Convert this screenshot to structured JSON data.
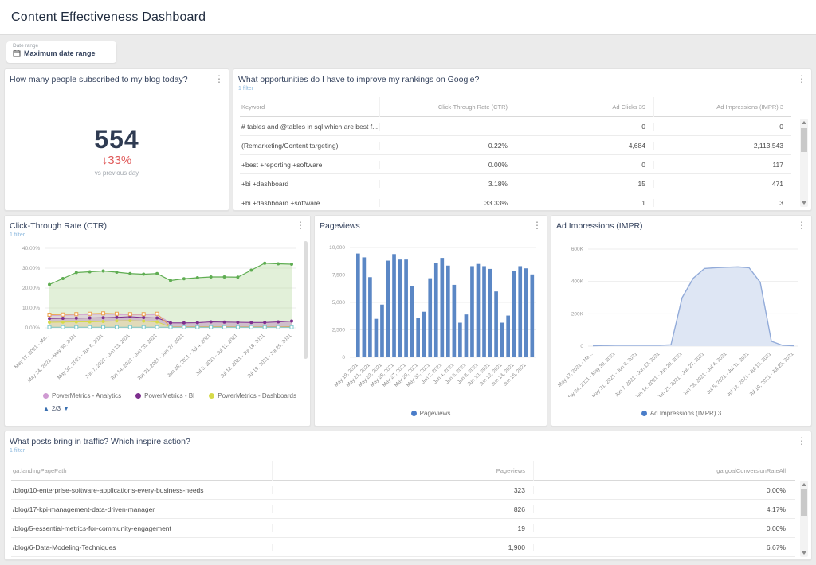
{
  "page": {
    "title": "Content Effectiveness Dashboard"
  },
  "date_filter": {
    "label": "Date range",
    "value": "Maximum date range"
  },
  "kebab_glyph": "⋮",
  "subscribers": {
    "title": "How many people subscribed to my blog today?",
    "value": "554",
    "delta_arrow": "↓",
    "delta": "33%",
    "compare": "vs previous day"
  },
  "rankings": {
    "title": "What opportunities do I have to improve my rankings on Google?",
    "filter": "1 filter",
    "columns": [
      "Keyword",
      "Click-Through Rate (CTR)",
      "Ad Clicks 39",
      "Ad Impressions (IMPR) 3"
    ],
    "rows": [
      [
        "# tables and @tables in sql which are best f...",
        "",
        "0",
        "0"
      ],
      [
        "(Remarketing/Content targeting)",
        "0.22%",
        "4,684",
        "2,113,543"
      ],
      [
        "+best +reporting +software",
        "0.00%",
        "0",
        "117"
      ],
      [
        "+bi +dashboard",
        "3.18%",
        "15",
        "471"
      ],
      [
        "+bi +dashboard +software",
        "33.33%",
        "1",
        "3"
      ]
    ]
  },
  "ctr_panel": {
    "title": "Click-Through Rate (CTR)",
    "filter": "1 filter",
    "pager": "2/3",
    "pager_up": "▲",
    "pager_down": "▼"
  },
  "pageviews_panel": {
    "title": "Pageviews"
  },
  "impressions_panel": {
    "title": "Ad Impressions (IMPR)"
  },
  "posts": {
    "title": "What posts bring in traffic? Which inspire action?",
    "filter": "1 filter",
    "columns": [
      "ga:landingPagePath",
      "Pageviews",
      "ga:goalConversionRateAll"
    ],
    "rows": [
      [
        "/blog/10-enterprise-software-applications-every-business-needs",
        "323",
        "0.00%"
      ],
      [
        "/blog/17-kpi-management-data-driven-manager",
        "826",
        "4.17%"
      ],
      [
        "/blog/5-essential-metrics-for-community-engagement",
        "19",
        "0.00%"
      ],
      [
        "/blog/6-Data-Modeling-Techniques",
        "1,900",
        "6.67%"
      ]
    ]
  },
  "colors": {
    "accent_blue": "#8db9de",
    "negative_red": "#e05b5b",
    "number_navy": "#2f3b52",
    "bar_blue": "#5b87c5",
    "pager_blue": "#3a6fb0"
  },
  "chart_data": [
    {
      "id": "ctr",
      "type": "line",
      "title": "Click-Through Rate (CTR)",
      "ylim": [
        0,
        40
      ],
      "yticks": [
        "40.00%",
        "30.00%",
        "20.00%",
        "10.00%",
        "0.00%"
      ],
      "ytick_values": [
        40,
        30,
        20,
        10,
        0
      ],
      "x_labels": [
        "May 17, 2021 - Ma...",
        "May 24, 2021 - May 30, 2021",
        "May 31, 2021 - Jun 6, 2021",
        "Jun 7, 2021 - Jun 13, 2021",
        "Jun 14, 2021 - Jun 20, 2021",
        "Jun 21, 2021 - Jun 27, 2021",
        "Jun 28, 2021 - Jul 4, 2021",
        "Jul 5, 2021 - Jul 11, 2021",
        "Jul 12, 2021 - Jul 18, 2021",
        "Jul 19, 2021 - Jul 25, 2021"
      ],
      "label_every": 2,
      "series": [
        {
          "name": "series-green",
          "color": "#5fad52",
          "fill": "rgba(151,200,118,0.28)",
          "marker": "circle",
          "width": 1.2,
          "values": [
            21.8,
            24.8,
            27.8,
            28.2,
            28.6,
            28.0,
            27.3,
            27.0,
            27.3,
            23.8,
            24.7,
            25.2,
            25.6,
            25.6,
            25.5,
            29.0,
            32.5,
            32.2,
            32.0
          ]
        },
        {
          "name": "PowerMetrics - Analytics",
          "color": "#cf9ad2",
          "fill": "rgba(207,154,210,0.30)",
          "marker": "none",
          "width": 0.8,
          "values": [
            6.2,
            6.3,
            6.5,
            6.7,
            6.9,
            6.7,
            6.5,
            6.5,
            6.7,
            2.4,
            2.4,
            2.5,
            2.9,
            2.8,
            2.7,
            2.6,
            2.6,
            2.9,
            3.3
          ]
        },
        {
          "name": "PowerMetrics - BI",
          "color": "#7d2f8e",
          "fill": "rgba(125,47,142,0.14)",
          "marker": "circle",
          "width": 1.1,
          "values": [
            4.7,
            4.8,
            4.9,
            5.0,
            5.1,
            5.3,
            5.6,
            5.2,
            5.0,
            2.5,
            2.5,
            2.6,
            3.0,
            2.9,
            2.8,
            2.7,
            2.7,
            3.0,
            3.4
          ]
        },
        {
          "name": "PowerMetrics - Dashboards",
          "color": "#d6da4a",
          "fill": "rgba(240,240,170,0.55)",
          "marker": "circle",
          "width": 0.9,
          "values": [
            2.8,
            2.9,
            3.0,
            3.0,
            3.2,
            3.5,
            3.6,
            3.4,
            3.0,
            0.4,
            0.4,
            0.5,
            0.5,
            0.5,
            0.4,
            0.4,
            0.4,
            0.4,
            0.5
          ]
        },
        {
          "name": "series-orange",
          "color": "#eca24e",
          "fill": "",
          "marker": "square",
          "width": 1.0,
          "values": [
            6.6,
            6.7,
            6.9,
            7.1,
            7.3,
            7.1,
            6.9,
            6.9,
            7.1,
            0.5,
            0.5,
            0.5,
            0.5,
            0.5,
            0.5,
            0.5,
            0.5,
            0.5,
            0.6
          ]
        },
        {
          "name": "series-cyan",
          "color": "#7cc8cc",
          "fill": "",
          "marker": "square",
          "width": 0.9,
          "values": [
            0.3,
            0.3,
            0.3,
            0.3,
            0.3,
            0.3,
            0.3,
            0.3,
            0.3,
            0.3,
            0.3,
            0.3,
            0.3,
            0.3,
            0.3,
            0.3,
            0.3,
            0.3,
            0.3
          ]
        }
      ],
      "legend": [
        {
          "label": "PowerMetrics - Analytics",
          "color": "#cf9ad2"
        },
        {
          "label": "PowerMetrics - BI",
          "color": "#7d2f8e"
        },
        {
          "label": "PowerMetrics - Dashboards",
          "color": "#d6da4a"
        }
      ],
      "legend_page": "2/3"
    },
    {
      "id": "pageviews",
      "type": "bar",
      "title": "Pageviews",
      "ylim": [
        0,
        10000
      ],
      "yticks": [
        "10,000",
        "7,500",
        "5,000",
        "2,500",
        "0"
      ],
      "ytick_values": [
        10000,
        7500,
        5000,
        2500,
        0
      ],
      "x_labels": [
        "May 19, 2021",
        "May 21, 2021",
        "May 23, 2021",
        "May 25, 2021",
        "May 27, 2021",
        "May 29, 2021",
        "May 31, 2021",
        "Jun 2, 2021",
        "Jun 4, 2021",
        "Jun 6, 2021",
        "Jun 8, 2021",
        "Jun 10, 2021",
        "Jun 12, 2021",
        "Jun 14, 2021",
        "Jun 16, 2021"
      ],
      "label_every": 2,
      "bar_color": "#5b87c5",
      "values": [
        9450,
        9100,
        7300,
        3500,
        4800,
        8800,
        9400,
        8900,
        8900,
        6500,
        3550,
        4150,
        7200,
        8600,
        9050,
        8350,
        6600,
        3150,
        3900,
        8300,
        8500,
        8300,
        8050,
        6000,
        3150,
        3800,
        7850,
        8300,
        8100,
        7550
      ],
      "legend": [
        {
          "label": "Pageviews",
          "color": "#4a7dc9"
        }
      ]
    },
    {
      "id": "impressions",
      "type": "area",
      "title": "Ad Impressions (IMPR)",
      "ylim": [
        0,
        600000
      ],
      "yticks": [
        "600K",
        "400K",
        "200K",
        "0"
      ],
      "ytick_values": [
        600000,
        400000,
        200000,
        0
      ],
      "x_labels": [
        "May 17, 2021 - Ma...",
        "May 24, 2021 - May 30, 2021",
        "May 31, 2021 - Jun 6, 2021",
        "Jun 7, 2021 - Jun 13, 2021",
        "Jun 14, 2021 - Jun 20, 2021",
        "Jun 21, 2021 - Jun 27, 2021",
        "Jun 28, 2021 - Jul 4, 2021",
        "Jul 5, 2021 - Jul 11, 2021",
        "Jul 12, 2021 - Jul 18, 2021",
        "Jul 19, 2021 - Jul 25, 2021"
      ],
      "label_every": 2,
      "color": "#92abd9",
      "fill": "#dee6f4",
      "values": [
        2000,
        4000,
        5000,
        5000,
        5000,
        5000,
        5000,
        8000,
        300000,
        420000,
        480000,
        485000,
        488000,
        490000,
        485000,
        395000,
        30000,
        5000,
        2000
      ],
      "legend": [
        {
          "label": "Ad Impressions (IMPR) 3",
          "color": "#4a7dc9"
        }
      ]
    }
  ]
}
